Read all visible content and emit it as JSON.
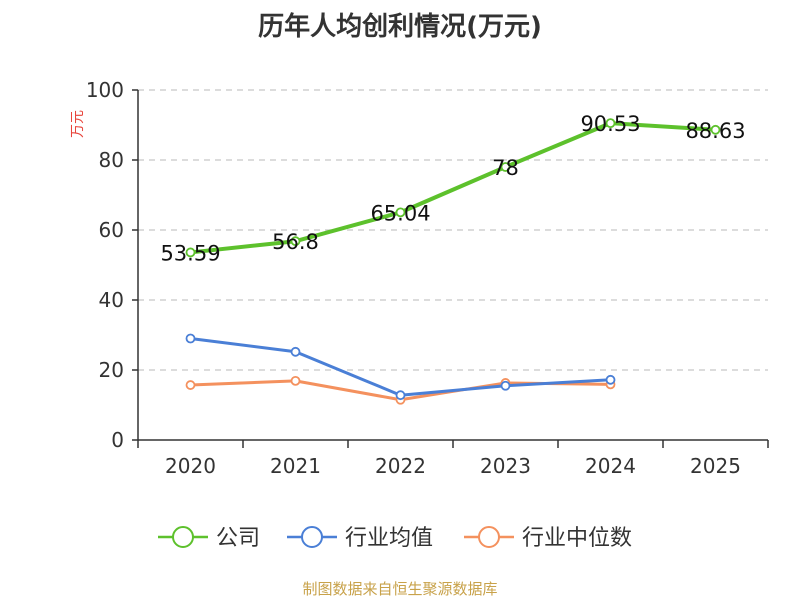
{
  "chart_data": {
    "type": "line",
    "title": "历年人均创利情况(万元)",
    "ylabel": "万元",
    "xlabel": "",
    "ylim": [
      0,
      100
    ],
    "yticks": [
      0,
      20,
      40,
      60,
      80,
      100
    ],
    "categories": [
      "2020",
      "2021",
      "2022",
      "2023",
      "2024",
      "2025"
    ],
    "series": [
      {
        "name": "公司",
        "color": "#5dc12c",
        "values": [
          53.59,
          56.8,
          65.04,
          78,
          90.53,
          88.63
        ],
        "labels": [
          "53.59",
          "56.8",
          "65.04",
          "78",
          "90.53",
          "88.63"
        ]
      },
      {
        "name": "行业均值",
        "color": "#4a7fd6",
        "values": [
          29.0,
          25.2,
          12.8,
          15.5,
          17.2,
          null
        ]
      },
      {
        "name": "行业中位数",
        "color": "#f4915e",
        "values": [
          15.7,
          16.9,
          11.5,
          16.3,
          15.9,
          null
        ]
      }
    ],
    "legend_position": "bottom",
    "grid": "horizontal-dashed"
  },
  "source": "制图数据来自恒生聚源数据库"
}
